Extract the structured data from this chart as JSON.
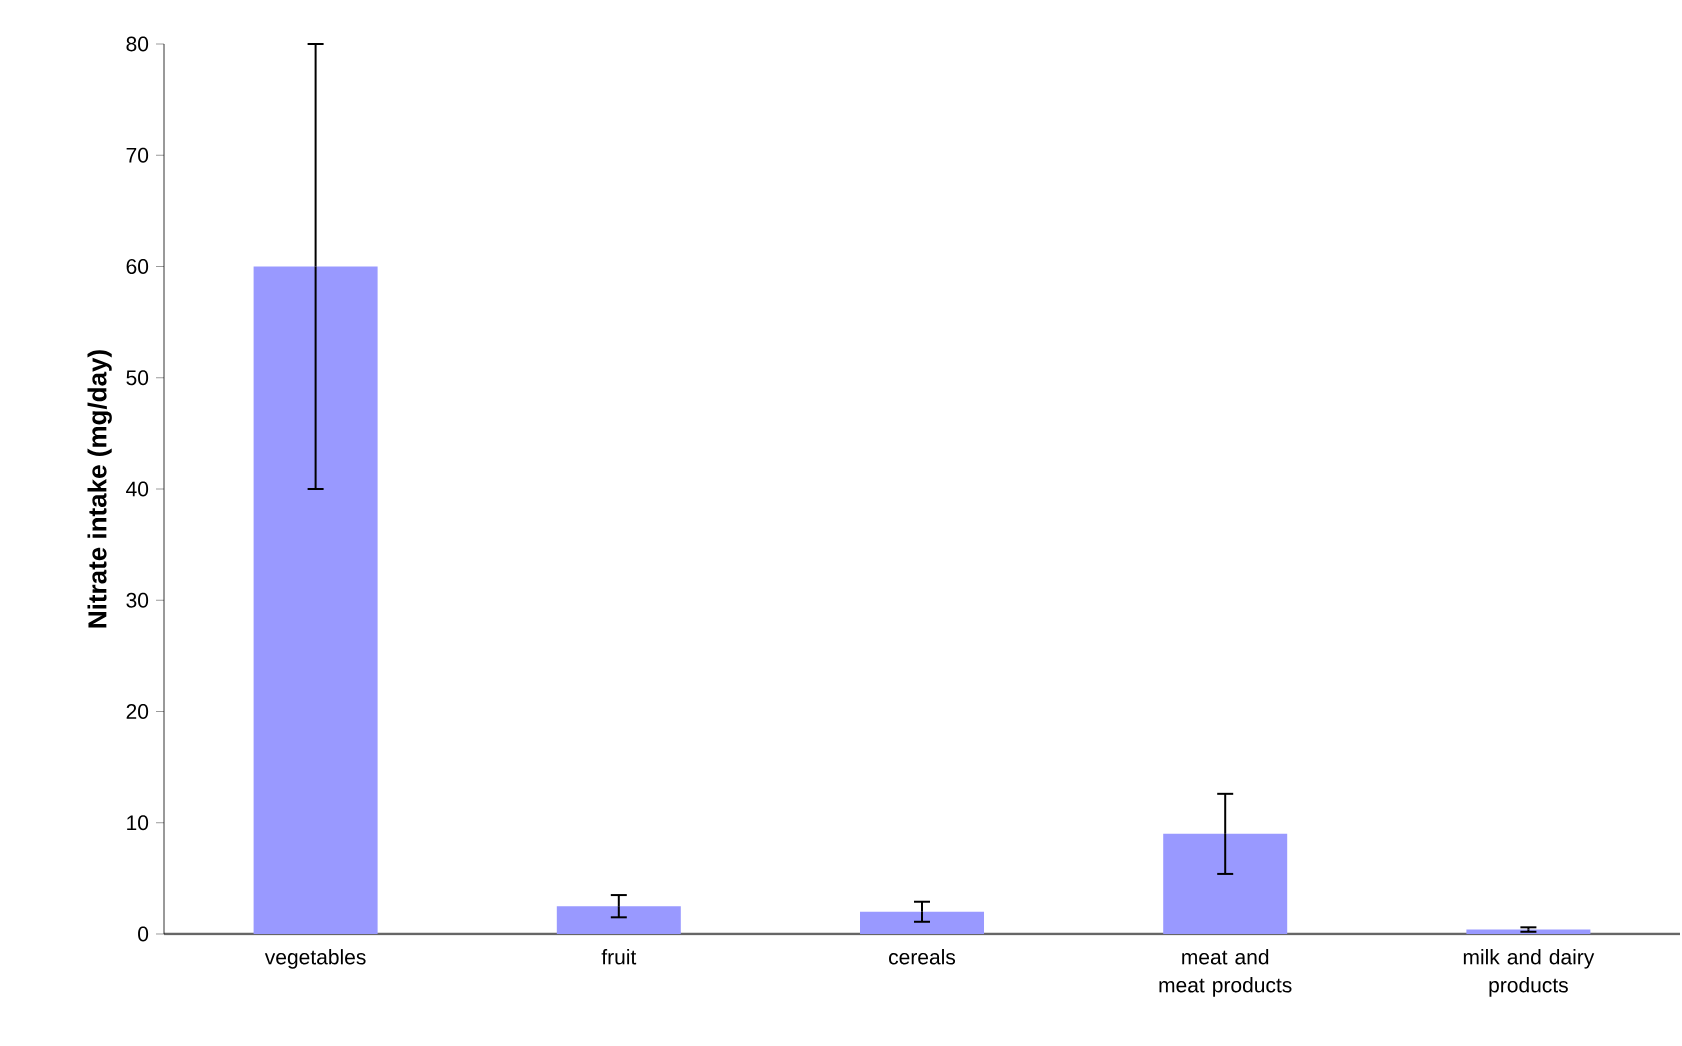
{
  "chart_data": {
    "type": "bar",
    "ylabel": "Nitrate  intake (mg/day)",
    "categories": [
      "vegetables",
      "fruit",
      "cereals",
      "meat and meat products",
      "milk and dairy products"
    ],
    "values": [
      60,
      2.5,
      2.0,
      9.0,
      0.4
    ],
    "errors": [
      20,
      1.0,
      0.9,
      3.6,
      0.2
    ],
    "color": "#9999ff",
    "ylim": [
      0,
      80
    ],
    "yticks": [
      0,
      10,
      20,
      30,
      40,
      50,
      60,
      70,
      80
    ]
  }
}
